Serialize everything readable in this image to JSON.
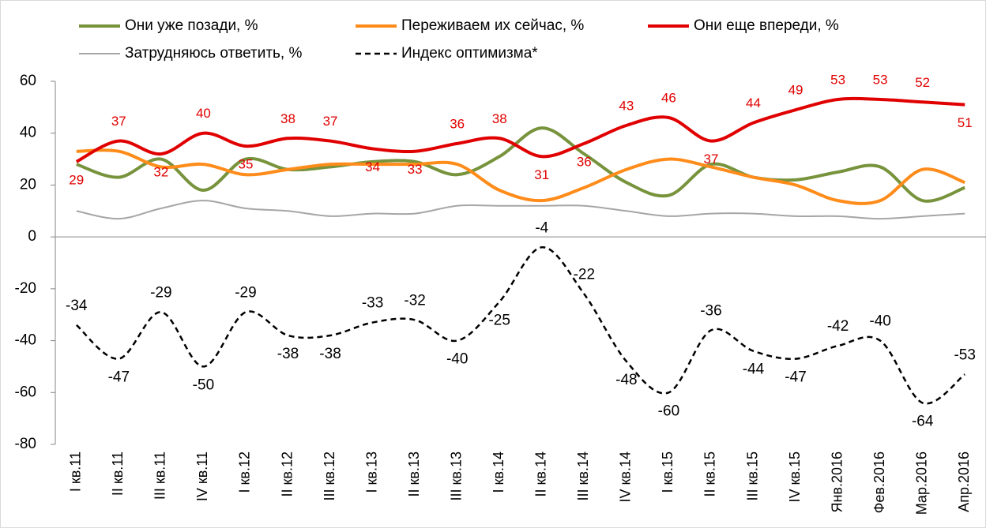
{
  "chart_data": {
    "type": "line",
    "categories": [
      "I кв.11",
      "II кв.11",
      "III кв.11",
      "IV кв.11",
      "I кв.12",
      "II кв.12",
      "III кв.12",
      "I кв.13",
      "II кв.13",
      "III кв.13",
      "I кв.14",
      "II кв.14",
      "III кв.14",
      "IV кв.14",
      "I кв.15",
      "II кв.15",
      "III кв.15",
      "IV кв.15",
      "Янв.2016",
      "Фев.2016",
      "Мар.2016",
      "Апр.2016"
    ],
    "series": [
      {
        "name": "Они уже позади, %",
        "color": "#77933c",
        "width": 4,
        "values": [
          28,
          23,
          30,
          18,
          30,
          26,
          27,
          29,
          29,
          24,
          31,
          42,
          32,
          21,
          16,
          28,
          23,
          22,
          25,
          27,
          14,
          19
        ]
      },
      {
        "name": "Переживаем их сейчас, %",
        "color": "#ff8c1a",
        "width": 4,
        "values": [
          33,
          33,
          27,
          28,
          24,
          26,
          28,
          28,
          28,
          28,
          18,
          14,
          19,
          26,
          30,
          27,
          23,
          20,
          14,
          14,
          26,
          21
        ]
      },
      {
        "name": "Они еще впереди, %",
        "color": "#e00000",
        "width": 4,
        "labels": true,
        "values": [
          29,
          37,
          32,
          40,
          35,
          38,
          37,
          34,
          33,
          36,
          38,
          31,
          36,
          43,
          46,
          37,
          44,
          49,
          53,
          53,
          52,
          51
        ]
      },
      {
        "name": "Затрудняюсь ответить, %",
        "color": "#a6a6a6",
        "width": 2,
        "values": [
          10,
          7,
          11,
          14,
          11,
          10,
          8,
          9,
          9,
          12,
          12,
          12,
          12,
          10,
          8,
          9,
          9,
          8,
          8,
          7,
          8,
          9
        ]
      },
      {
        "name": "Индекс оптимизма*",
        "color": "#000000",
        "width": 2.5,
        "dashed": true,
        "labels": true,
        "values": [
          -34,
          -47,
          -29,
          -50,
          -29,
          -38,
          -38,
          -33,
          -32,
          -40,
          -25,
          -4,
          -22,
          -48,
          -60,
          -36,
          -44,
          -47,
          -42,
          -40,
          -64,
          -53
        ]
      }
    ],
    "ylim": [
      -80,
      60
    ],
    "yticks": [
      -80,
      -60,
      -40,
      -20,
      0,
      20,
      40,
      60
    ]
  }
}
